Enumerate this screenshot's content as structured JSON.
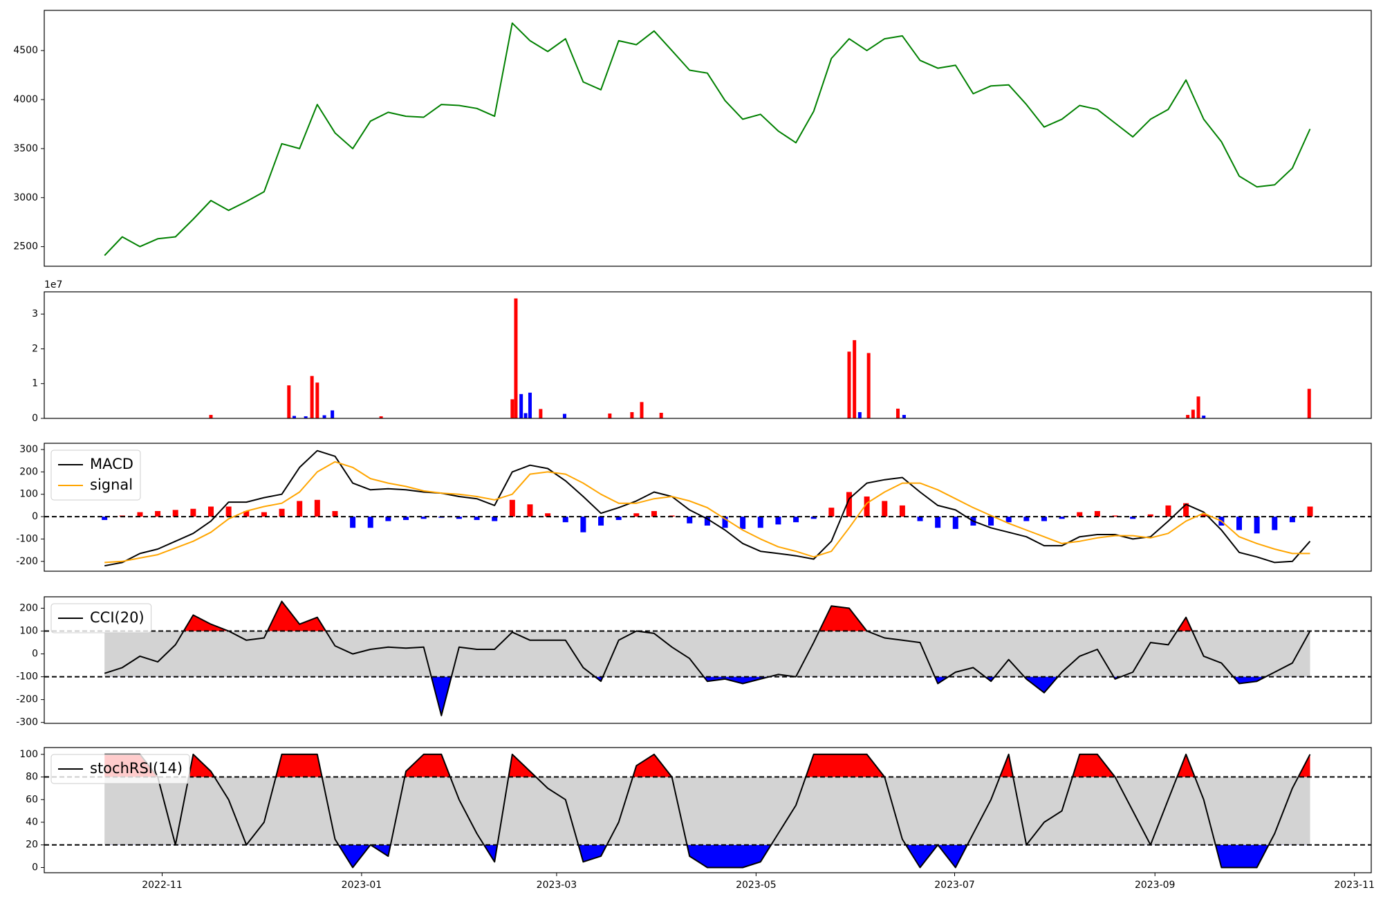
{
  "chart_data": [
    {
      "type": "line",
      "xlim": [
        -3.4,
        71.45
      ],
      "ylim": [
        2300,
        4910
      ],
      "yticks": [
        2500,
        3000,
        3500,
        4000,
        4500
      ],
      "series": [
        {
          "color": "green",
          "values": [
            2410,
            2600,
            2500,
            2580,
            2600,
            2780,
            2970,
            2870,
            2960,
            3060,
            3550,
            3500,
            3950,
            3660,
            3500,
            3780,
            3870,
            3830,
            3820,
            3950,
            3940,
            3910,
            3830,
            4780,
            4600,
            4490,
            4620,
            4180,
            4100,
            4600,
            4560,
            4700,
            4500,
            4300,
            4270,
            3990,
            3800,
            3850,
            3680,
            3560,
            3880,
            4420,
            4620,
            4500,
            4620,
            4650,
            4400,
            4320,
            4350,
            4060,
            4140,
            4150,
            3950,
            3720,
            3800,
            3940,
            3900,
            3760,
            3620,
            3800,
            3900,
            4200,
            3800,
            3570,
            3220,
            3110,
            3130,
            3300,
            3700
          ]
        }
      ]
    },
    {
      "type": "bar",
      "xlim": [
        -3.4,
        71.45
      ],
      "ylim": [
        0,
        3.64
      ],
      "yticks": [
        0,
        1,
        2,
        3
      ],
      "offset_label": "1e7",
      "x": [
        0.25,
        6.0,
        10.4,
        10.7,
        11.35,
        11.7,
        12.0,
        12.4,
        12.85,
        15.6,
        23.0,
        23.2,
        23.5,
        23.75,
        24.0,
        24.6,
        25.95,
        28.5,
        29.75,
        30.3,
        31.4,
        42.0,
        42.3,
        42.6,
        43.1,
        44.75,
        45.1,
        61.1,
        61.4,
        61.7,
        62.0,
        67.95
      ],
      "values": [
        0.01,
        0.1,
        0.95,
        0.07,
        0.06,
        1.22,
        1.03,
        0.09,
        0.23,
        0.06,
        0.55,
        3.45,
        0.7,
        0.15,
        0.74,
        0.27,
        0.13,
        0.14,
        0.18,
        0.47,
        0.16,
        1.92,
        2.25,
        0.18,
        1.88,
        0.28,
        0.1,
        0.1,
        0.25,
        0.63,
        0.08,
        0.85
      ],
      "colors": [
        "red",
        "red",
        "red",
        "blue",
        "blue",
        "red",
        "red",
        "blue",
        "blue",
        "red",
        "red",
        "red",
        "blue",
        "blue",
        "blue",
        "red",
        "blue",
        "red",
        "red",
        "red",
        "red",
        "red",
        "red",
        "blue",
        "red",
        "red",
        "blue",
        "red",
        "red",
        "red",
        "blue",
        "red"
      ]
    },
    {
      "type": "line",
      "xlim": [
        -3.4,
        71.45
      ],
      "ylim": [
        -244,
        328
      ],
      "yticks": [
        -200,
        -100,
        0,
        100,
        200,
        300
      ],
      "hline": 0,
      "legend": "upper left",
      "series": [
        {
          "name": "MACD",
          "color": "black",
          "values": [
            -220,
            -205,
            -165,
            -145,
            -110,
            -75,
            -20,
            65,
            65,
            85,
            100,
            220,
            295,
            270,
            150,
            120,
            125,
            120,
            110,
            105,
            90,
            80,
            50,
            200,
            230,
            215,
            160,
            90,
            15,
            40,
            70,
            110,
            90,
            30,
            -10,
            -60,
            -120,
            -155,
            -165,
            -175,
            -190,
            -110,
            80,
            150,
            165,
            175,
            110,
            50,
            30,
            -20,
            -50,
            -70,
            -90,
            -130,
            -130,
            -90,
            -80,
            -80,
            -100,
            -90,
            -20,
            55,
            20,
            -60,
            -160,
            -180,
            -205,
            -200,
            -110
          ]
        },
        {
          "name": "signal",
          "color": "orange",
          "values": [
            -205,
            -200,
            -185,
            -170,
            -140,
            -110,
            -70,
            -10,
            25,
            45,
            60,
            110,
            200,
            245,
            220,
            170,
            150,
            135,
            115,
            105,
            100,
            90,
            75,
            100,
            190,
            200,
            190,
            150,
            100,
            60,
            60,
            80,
            90,
            70,
            40,
            -10,
            -60,
            -100,
            -135,
            -155,
            -180,
            -155,
            -50,
            60,
            110,
            150,
            150,
            120,
            80,
            40,
            5,
            -30,
            -60,
            -90,
            -120,
            -110,
            -95,
            -85,
            -85,
            -95,
            -75,
            -20,
            15,
            -20,
            -90,
            -120,
            -145,
            -165,
            -165
          ]
        }
      ],
      "histogram": {
        "positive_color": "red",
        "negative_color": "blue",
        "values": [
          -15,
          5,
          20,
          25,
          30,
          35,
          45,
          45,
          25,
          20,
          35,
          70,
          75,
          25,
          -50,
          -50,
          -20,
          -15,
          -10,
          -5,
          -10,
          -15,
          -20,
          75,
          55,
          15,
          -25,
          -70,
          -40,
          -15,
          15,
          25,
          5,
          -30,
          -40,
          -50,
          -55,
          -50,
          -35,
          -25,
          -10,
          40,
          110,
          90,
          70,
          50,
          -20,
          -50,
          -55,
          -40,
          -40,
          -25,
          -20,
          -20,
          -10,
          20,
          25,
          5,
          -10,
          10,
          50,
          60,
          10,
          -40,
          -60,
          -75,
          -60,
          -25,
          45
        ]
      }
    },
    {
      "type": "line",
      "xlim": [
        -3.4,
        71.45
      ],
      "ylim": [
        -304,
        250
      ],
      "yticks": [
        -300,
        -200,
        -100,
        0,
        100,
        200
      ],
      "upper": 100,
      "lower": -100,
      "band_color": "lightgray",
      "upper_fill": "red",
      "lower_fill": "blue",
      "legend": "upper left",
      "series": [
        {
          "name": "CCI(20)",
          "color": "black",
          "values": [
            -85,
            -60,
            -10,
            -35,
            40,
            170,
            130,
            100,
            60,
            70,
            230,
            130,
            160,
            35,
            0,
            20,
            30,
            25,
            30,
            -270,
            30,
            20,
            20,
            95,
            60,
            60,
            60,
            -60,
            -120,
            60,
            100,
            90,
            30,
            -20,
            -120,
            -110,
            -130,
            -110,
            -90,
            -100,
            50,
            210,
            200,
            100,
            70,
            60,
            50,
            -130,
            -80,
            -60,
            -120,
            -25,
            -110,
            -170,
            -80,
            -10,
            20,
            -110,
            -80,
            50,
            40,
            160,
            -10,
            -40,
            -130,
            -120,
            -80,
            -40,
            100
          ]
        }
      ]
    },
    {
      "type": "line",
      "xlim": [
        -3.4,
        71.45
      ],
      "ylim": [
        -4.6,
        106
      ],
      "yticks": [
        0,
        20,
        40,
        60,
        80,
        100
      ],
      "upper": 80,
      "lower": 20,
      "band_color": "lightgray",
      "upper_fill": "red",
      "lower_fill": "blue",
      "legend": "upper left",
      "xticks": [
        {
          "value": 3.25,
          "label": "2022-11"
        },
        {
          "value": 14.5,
          "label": "2023-01"
        },
        {
          "value": 25.5,
          "label": "2023-03"
        },
        {
          "value": 36.75,
          "label": "2023-05"
        },
        {
          "value": 47.95,
          "label": "2023-07"
        },
        {
          "value": 59.25,
          "label": "2023-09"
        },
        {
          "value": 70.5,
          "label": "2023-11"
        }
      ],
      "series": [
        {
          "name": "stochRSI(14)",
          "color": "black",
          "values": [
            100,
            100,
            100,
            80,
            20,
            100,
            85,
            60,
            20,
            40,
            100,
            100,
            100,
            25,
            0,
            20,
            10,
            85,
            100,
            100,
            60,
            30,
            5,
            100,
            85,
            70,
            60,
            5,
            10,
            40,
            90,
            100,
            80,
            10,
            0,
            0,
            0,
            5,
            30,
            55,
            100,
            100,
            100,
            100,
            80,
            25,
            0,
            20,
            0,
            30,
            60,
            100,
            20,
            40,
            50,
            100,
            100,
            80,
            50,
            20,
            60,
            100,
            60,
            0,
            0,
            0,
            30,
            70,
            100
          ]
        }
      ]
    }
  ]
}
